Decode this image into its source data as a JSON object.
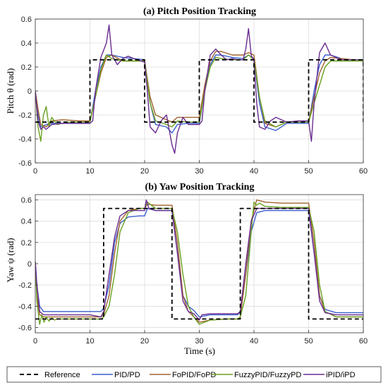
{
  "figure": {
    "legend": [
      {
        "name": "Reference",
        "color": "#000000",
        "dash": true
      },
      {
        "name": "PID/PD",
        "color": "#3a5fcd"
      },
      {
        "name": "FoPID/FoPD",
        "color": "#a0622d"
      },
      {
        "name": "FuzzyPID/FuzzyPD",
        "color": "#6aa121"
      },
      {
        "name": "iPID/iPD",
        "color": "#6a2c91"
      }
    ],
    "grid": true
  },
  "chart_data": [
    {
      "type": "line",
      "title": "(a) Pitch Position Tracking",
      "xlabel": "",
      "ylabel": "Pitch θ (rad)",
      "xlim": [
        0,
        60
      ],
      "ylim": [
        -0.6,
        0.6
      ],
      "xticks": [
        0,
        10,
        20,
        30,
        40,
        50,
        60
      ],
      "yticks": [
        0.6,
        0.4,
        0.2,
        0,
        -0.2,
        -0.4,
        -0.6
      ],
      "series": [
        {
          "name": "Reference",
          "color": "#000000",
          "dash": true,
          "x": [
            0,
            10,
            10,
            20,
            20,
            30,
            30,
            40,
            40,
            50,
            50,
            60,
            60
          ],
          "y": [
            -0.26,
            -0.26,
            0.26,
            0.26,
            -0.26,
            -0.26,
            0.26,
            0.26,
            -0.26,
            -0.26,
            0.26,
            0.26,
            -0.26
          ]
        },
        {
          "name": "PID/PD",
          "color": "#3a5fcd",
          "x": [
            0,
            0.5,
            1,
            2,
            3,
            5,
            8,
            10,
            11,
            12,
            13,
            14,
            16,
            18,
            20,
            21,
            22,
            24,
            25,
            26,
            28,
            30,
            31,
            32,
            33,
            34,
            36,
            38,
            39,
            40,
            41,
            42,
            44,
            46,
            48,
            50,
            51,
            52,
            53,
            54,
            56,
            58,
            60
          ],
          "y": [
            0.0,
            -0.2,
            -0.3,
            -0.28,
            -0.27,
            -0.27,
            -0.27,
            -0.27,
            0.0,
            0.2,
            0.3,
            0.3,
            0.28,
            0.27,
            0.26,
            -0.1,
            -0.28,
            -0.3,
            -0.35,
            -0.28,
            -0.27,
            -0.27,
            0.0,
            0.22,
            0.3,
            0.3,
            0.28,
            0.27,
            0.3,
            0.27,
            -0.1,
            -0.3,
            -0.33,
            -0.27,
            -0.27,
            -0.27,
            0.0,
            0.22,
            0.3,
            0.3,
            0.27,
            0.26,
            0.26
          ]
        },
        {
          "name": "FoPID/FoPD",
          "color": "#a0622d",
          "x": [
            0,
            0.5,
            1,
            2,
            3,
            5,
            8,
            10,
            11,
            12,
            13,
            14,
            16,
            18,
            20,
            21,
            22,
            24,
            25,
            26,
            28,
            30,
            31,
            32,
            33,
            34,
            36,
            38,
            39,
            40,
            41,
            42,
            44,
            46,
            48,
            50,
            51,
            52,
            53,
            54,
            56,
            58,
            60
          ],
          "y": [
            0.0,
            -0.15,
            -0.28,
            -0.3,
            -0.25,
            -0.24,
            -0.25,
            -0.25,
            -0.05,
            0.15,
            0.28,
            0.3,
            0.25,
            0.25,
            0.25,
            -0.05,
            -0.2,
            -0.24,
            -0.26,
            -0.22,
            -0.22,
            -0.22,
            0.05,
            0.25,
            0.33,
            0.33,
            0.3,
            0.3,
            0.32,
            0.3,
            -0.05,
            -0.27,
            -0.3,
            -0.26,
            -0.26,
            -0.26,
            -0.05,
            0.15,
            0.25,
            0.28,
            0.27,
            0.26,
            0.26
          ]
        },
        {
          "name": "FuzzyPID/FuzzyPD",
          "color": "#6aa121",
          "x": [
            0,
            0.5,
            1,
            1.5,
            2,
            2.5,
            3,
            4,
            6,
            8,
            10,
            11,
            12,
            13,
            14,
            16,
            18,
            20,
            21,
            22,
            24,
            25,
            26,
            28,
            30,
            31,
            32,
            33,
            34,
            36,
            38,
            39,
            40,
            41,
            42,
            44,
            46,
            48,
            50,
            51,
            52,
            53,
            54,
            56,
            58,
            60
          ],
          "y": [
            0.0,
            -0.3,
            -0.42,
            -0.2,
            -0.13,
            -0.3,
            -0.22,
            -0.28,
            -0.26,
            -0.26,
            -0.26,
            -0.05,
            0.18,
            0.3,
            0.27,
            0.25,
            0.25,
            0.25,
            -0.1,
            -0.25,
            -0.28,
            -0.3,
            -0.25,
            -0.26,
            -0.26,
            0.0,
            0.2,
            0.28,
            0.27,
            0.26,
            0.26,
            0.3,
            0.26,
            -0.05,
            -0.25,
            -0.3,
            -0.26,
            -0.26,
            -0.26,
            -0.1,
            0.05,
            0.2,
            0.25,
            0.25,
            0.25,
            0.25
          ]
        },
        {
          "name": "iPID/iPD",
          "color": "#6a2c91",
          "x": [
            0,
            0.5,
            1,
            1.5,
            2,
            3,
            5,
            8,
            10,
            10.5,
            11,
            12,
            13,
            13.5,
            14,
            15,
            16,
            17,
            18,
            20,
            20.5,
            21,
            22,
            23,
            24,
            25,
            25.5,
            26,
            27,
            28,
            30,
            30.5,
            31,
            32,
            33,
            34,
            35,
            36,
            37,
            38,
            38.5,
            39,
            39.5,
            40,
            40.5,
            41,
            42,
            43,
            44,
            46,
            48,
            50,
            50.5,
            51,
            52,
            53,
            54,
            56,
            58,
            60
          ],
          "y": [
            0.0,
            -0.25,
            -0.32,
            -0.3,
            -0.32,
            -0.28,
            -0.27,
            -0.27,
            -0.27,
            -0.25,
            0.0,
            0.28,
            0.4,
            0.55,
            0.3,
            0.22,
            0.27,
            0.29,
            0.27,
            0.24,
            0.0,
            -0.3,
            -0.35,
            -0.25,
            -0.2,
            -0.45,
            -0.52,
            -0.35,
            -0.22,
            -0.28,
            -0.28,
            -0.25,
            0.0,
            0.3,
            0.35,
            0.3,
            0.26,
            0.27,
            0.26,
            0.26,
            0.35,
            0.52,
            0.3,
            0.25,
            -0.1,
            -0.3,
            -0.32,
            -0.25,
            -0.22,
            -0.26,
            -0.25,
            -0.25,
            -0.42,
            -0.1,
            0.32,
            0.4,
            0.3,
            0.26,
            0.26,
            0.26
          ]
        }
      ]
    },
    {
      "type": "line",
      "title": "(b) Yaw Position Tracking",
      "xlabel": "Time (s)",
      "ylabel": "Yaw ψ (rad)",
      "xlim": [
        0,
        60
      ],
      "ylim": [
        -0.65,
        0.65
      ],
      "xticks": [
        0,
        10,
        20,
        30,
        40,
        50,
        60
      ],
      "yticks": [
        0.6,
        0.4,
        0.2,
        0,
        -0.2,
        -0.4,
        -0.6
      ],
      "series": [
        {
          "name": "Reference",
          "color": "#000000",
          "dash": true,
          "x": [
            0,
            12.5,
            12.5,
            25,
            25,
            37.5,
            37.5,
            50,
            50,
            60
          ],
          "y": [
            -0.52,
            -0.52,
            0.52,
            0.52,
            -0.52,
            -0.52,
            0.52,
            0.52,
            -0.52,
            -0.52
          ]
        },
        {
          "name": "PID/PD",
          "color": "#3a5fcd",
          "x": [
            0,
            0.3,
            0.8,
            1.5,
            2.5,
            5,
            10,
            12,
            12.5,
            13.5,
            14.5,
            15.5,
            17,
            19,
            20,
            20.5,
            22,
            24,
            25,
            26,
            27,
            28,
            29,
            30,
            32,
            35,
            37,
            37.5,
            38.5,
            39.5,
            40.5,
            42,
            45,
            48,
            50,
            51,
            52,
            53,
            55,
            58,
            60
          ],
          "y": [
            0.02,
            -0.2,
            -0.4,
            -0.45,
            -0.45,
            -0.45,
            -0.45,
            -0.45,
            -0.42,
            -0.2,
            0.2,
            0.38,
            0.44,
            0.45,
            0.45,
            0.52,
            0.5,
            0.5,
            0.5,
            0.1,
            -0.3,
            -0.4,
            -0.44,
            -0.5,
            -0.48,
            -0.48,
            -0.48,
            -0.45,
            -0.1,
            0.3,
            0.48,
            0.5,
            0.5,
            0.5,
            0.5,
            0.1,
            -0.3,
            -0.43,
            -0.46,
            -0.46,
            -0.46
          ]
        },
        {
          "name": "FoPID/FoPD",
          "color": "#a0622d",
          "x": [
            0,
            0.3,
            0.8,
            1.5,
            2.5,
            5,
            10,
            12,
            12.5,
            13.5,
            14.5,
            15.5,
            17,
            19,
            20,
            20.5,
            22,
            24,
            25,
            26,
            27,
            28,
            29,
            30,
            32,
            35,
            37,
            37.5,
            38.5,
            39.5,
            40.5,
            42,
            45,
            48,
            50,
            51,
            52,
            53,
            55,
            58,
            60
          ],
          "y": [
            0.02,
            -0.3,
            -0.48,
            -0.5,
            -0.5,
            -0.5,
            -0.5,
            -0.5,
            -0.48,
            -0.3,
            0.1,
            0.4,
            0.5,
            0.52,
            0.52,
            0.56,
            0.55,
            0.55,
            0.55,
            0.2,
            -0.3,
            -0.45,
            -0.5,
            -0.55,
            -0.53,
            -0.52,
            -0.52,
            -0.5,
            -0.1,
            0.4,
            0.6,
            0.58,
            0.57,
            0.57,
            0.57,
            0.2,
            -0.3,
            -0.45,
            -0.5,
            -0.5,
            -0.5
          ]
        },
        {
          "name": "FuzzyPID/FuzzyPD",
          "color": "#6aa121",
          "x": [
            0,
            0.3,
            0.8,
            1.2,
            1.6,
            2,
            2.5,
            3,
            3.5,
            4,
            5,
            7,
            10,
            12,
            12.5,
            13.5,
            14.5,
            15.5,
            17,
            19,
            20,
            20.5,
            22,
            24,
            25,
            26,
            27,
            28,
            29,
            30,
            32,
            35,
            37,
            37.5,
            38.5,
            39.5,
            40,
            40.5,
            41,
            42,
            45,
            48,
            50,
            51,
            52,
            53,
            55,
            58,
            60
          ],
          "y": [
            0.02,
            -0.35,
            -0.57,
            -0.48,
            -0.55,
            -0.5,
            -0.54,
            -0.51,
            -0.53,
            -0.52,
            -0.52,
            -0.52,
            -0.52,
            -0.52,
            -0.5,
            -0.4,
            -0.1,
            0.3,
            0.48,
            0.52,
            0.52,
            0.58,
            0.52,
            0.52,
            0.52,
            0.3,
            -0.1,
            -0.4,
            -0.5,
            -0.57,
            -0.53,
            -0.52,
            -0.52,
            -0.5,
            -0.3,
            0.3,
            0.58,
            0.55,
            0.57,
            0.54,
            0.53,
            0.53,
            0.53,
            0.3,
            -0.2,
            -0.45,
            -0.5,
            -0.5,
            -0.5
          ]
        },
        {
          "name": "iPID/iPD",
          "color": "#6a2c91",
          "x": [
            0,
            0.3,
            0.8,
            1.5,
            2.5,
            5,
            10,
            11,
            12,
            12.5,
            13.5,
            14.5,
            15.5,
            17,
            19,
            20,
            20.3,
            20.8,
            22,
            24,
            25,
            26,
            27,
            28,
            29,
            30,
            30.5,
            32,
            35,
            37,
            37.5,
            38.5,
            39.5,
            40.5,
            42,
            45,
            48,
            50,
            51,
            52,
            53,
            55,
            58,
            60
          ],
          "y": [
            0.02,
            -0.2,
            -0.45,
            -0.48,
            -0.48,
            -0.48,
            -0.48,
            -0.49,
            -0.5,
            -0.45,
            -0.1,
            0.25,
            0.45,
            0.5,
            0.5,
            0.5,
            0.6,
            0.52,
            0.5,
            0.5,
            0.5,
            0.1,
            -0.35,
            -0.45,
            -0.47,
            -0.53,
            -0.48,
            -0.47,
            -0.47,
            -0.47,
            -0.45,
            0.0,
            0.4,
            0.52,
            0.52,
            0.52,
            0.52,
            0.52,
            0.1,
            -0.35,
            -0.46,
            -0.48,
            -0.48,
            -0.48
          ]
        }
      ]
    }
  ]
}
